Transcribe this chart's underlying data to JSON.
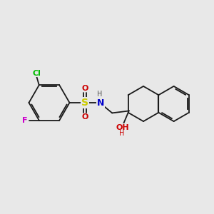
{
  "background_color": "#e8e8e8",
  "bond_color": "#1a1a1a",
  "atom_colors": {
    "Cl": "#00bb00",
    "F": "#cc00cc",
    "S": "#cccc00",
    "N": "#0000cc",
    "O": "#cc0000",
    "H": "#555555"
  },
  "figsize": [
    3.0,
    3.0
  ],
  "dpi": 100
}
